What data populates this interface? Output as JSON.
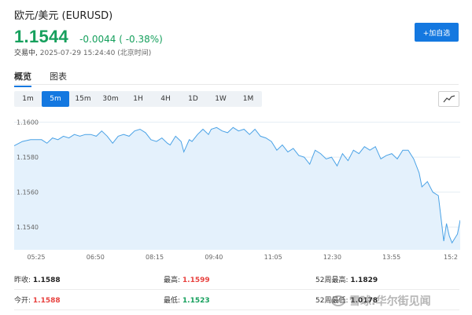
{
  "header": {
    "title": "欧元/美元  (EURUSD)",
    "price": "1.1544",
    "change": "-0.0044 ( -0.38%)",
    "status_label": "交易中,",
    "timestamp": "2025-07-29 15:24:40 (北京时间)",
    "add_button": "+加自选"
  },
  "tabs": [
    {
      "label": "概览",
      "active": true
    },
    {
      "label": "图表",
      "active": false
    }
  ],
  "periods": [
    {
      "label": "1m",
      "active": false
    },
    {
      "label": "5m",
      "active": true
    },
    {
      "label": "15m",
      "active": false
    },
    {
      "label": "30m",
      "active": false
    },
    {
      "label": "1H",
      "active": false
    },
    {
      "label": "4H",
      "active": false
    },
    {
      "label": "1D",
      "active": false
    },
    {
      "label": "1W",
      "active": false
    },
    {
      "label": "1M",
      "active": false
    }
  ],
  "trend_icon": "trend-line-icon",
  "colors": {
    "accent": "#1478e0",
    "down": "#16a05d",
    "up": "#e8423f",
    "chart_line": "#4aa2e6",
    "chart_fill": "#e4f1fc"
  },
  "chart_data": {
    "type": "area",
    "x_ticks": [
      "05:25",
      "06:50",
      "08:15",
      "09:40",
      "11:05",
      "12:30",
      "13:55",
      "15:2"
    ],
    "y_ticks": [
      "1.1600",
      "1.1580",
      "1.1560",
      "1.1540"
    ],
    "ylim": [
      1.1527,
      1.1607
    ],
    "grid": "horizontal",
    "points": [
      [
        0,
        1.15865
      ],
      [
        3,
        1.1589
      ],
      [
        6,
        1.159
      ],
      [
        10,
        1.159
      ],
      [
        12,
        1.1588
      ],
      [
        14,
        1.1591
      ],
      [
        16,
        1.159
      ],
      [
        18,
        1.1592
      ],
      [
        20,
        1.1591
      ],
      [
        22,
        1.1593
      ],
      [
        24,
        1.1592
      ],
      [
        26,
        1.1593
      ],
      [
        28,
        1.1593
      ],
      [
        30,
        1.1592
      ],
      [
        32,
        1.1595
      ],
      [
        34,
        1.1592
      ],
      [
        36,
        1.1588
      ],
      [
        38,
        1.1592
      ],
      [
        40,
        1.1593
      ],
      [
        42,
        1.1592
      ],
      [
        44,
        1.1595
      ],
      [
        46,
        1.1596
      ],
      [
        48,
        1.1594
      ],
      [
        50,
        1.159
      ],
      [
        52,
        1.1589
      ],
      [
        54,
        1.1591
      ],
      [
        56,
        1.1588
      ],
      [
        57,
        1.1587
      ],
      [
        59,
        1.1592
      ],
      [
        61,
        1.1589
      ],
      [
        62,
        1.1583
      ],
      [
        64,
        1.159
      ],
      [
        65,
        1.1589
      ],
      [
        67,
        1.1593
      ],
      [
        69,
        1.1596
      ],
      [
        71,
        1.1593
      ],
      [
        72,
        1.1596
      ],
      [
        74,
        1.1597
      ],
      [
        76,
        1.1595
      ],
      [
        78,
        1.1594
      ],
      [
        80,
        1.1597
      ],
      [
        82,
        1.1595
      ],
      [
        84,
        1.1596
      ],
      [
        86,
        1.1593
      ],
      [
        88,
        1.1596
      ],
      [
        90,
        1.1592
      ],
      [
        92,
        1.1591
      ],
      [
        94,
        1.1589
      ],
      [
        96,
        1.1584
      ],
      [
        98,
        1.1587
      ],
      [
        100,
        1.1583
      ],
      [
        102,
        1.1585
      ],
      [
        104,
        1.1581
      ],
      [
        106,
        1.158
      ],
      [
        108,
        1.1576
      ],
      [
        110,
        1.1584
      ],
      [
        112,
        1.1582
      ],
      [
        114,
        1.1579
      ],
      [
        116,
        1.158
      ],
      [
        118,
        1.1575
      ],
      [
        120,
        1.1582
      ],
      [
        122,
        1.1578
      ],
      [
        124,
        1.1584
      ],
      [
        126,
        1.1582
      ],
      [
        128,
        1.1586
      ],
      [
        130,
        1.1584
      ],
      [
        132,
        1.1586
      ],
      [
        134,
        1.1579
      ],
      [
        136,
        1.1581
      ],
      [
        138,
        1.1582
      ],
      [
        140,
        1.1579
      ],
      [
        142,
        1.1584
      ],
      [
        144,
        1.1584
      ],
      [
        146,
        1.1579
      ],
      [
        148,
        1.1571
      ],
      [
        149,
        1.1563
      ],
      [
        151,
        1.1566
      ],
      [
        153,
        1.156
      ],
      [
        155,
        1.1558
      ],
      [
        156,
        1.1545
      ],
      [
        157,
        1.1532
      ],
      [
        158,
        1.1542
      ],
      [
        159,
        1.1535
      ],
      [
        160,
        1.1531
      ],
      [
        162,
        1.1536
      ],
      [
        163,
        1.1544
      ]
    ],
    "x_max": 163
  },
  "stats": [
    {
      "label": "昨收:",
      "value": "1.1588",
      "tone": "dark"
    },
    {
      "label": "最高:",
      "value": "1.1599",
      "tone": "red"
    },
    {
      "label": "52周最高:",
      "value": "1.1829",
      "tone": "dark"
    },
    {
      "label": "今开:",
      "value": "1.1588",
      "tone": "red"
    },
    {
      "label": "最低:",
      "value": "1.1523",
      "tone": "green"
    },
    {
      "label": "52周最低:",
      "value": "1.0178",
      "tone": "dark"
    }
  ],
  "watermark": "雪球:华尔街见闻"
}
